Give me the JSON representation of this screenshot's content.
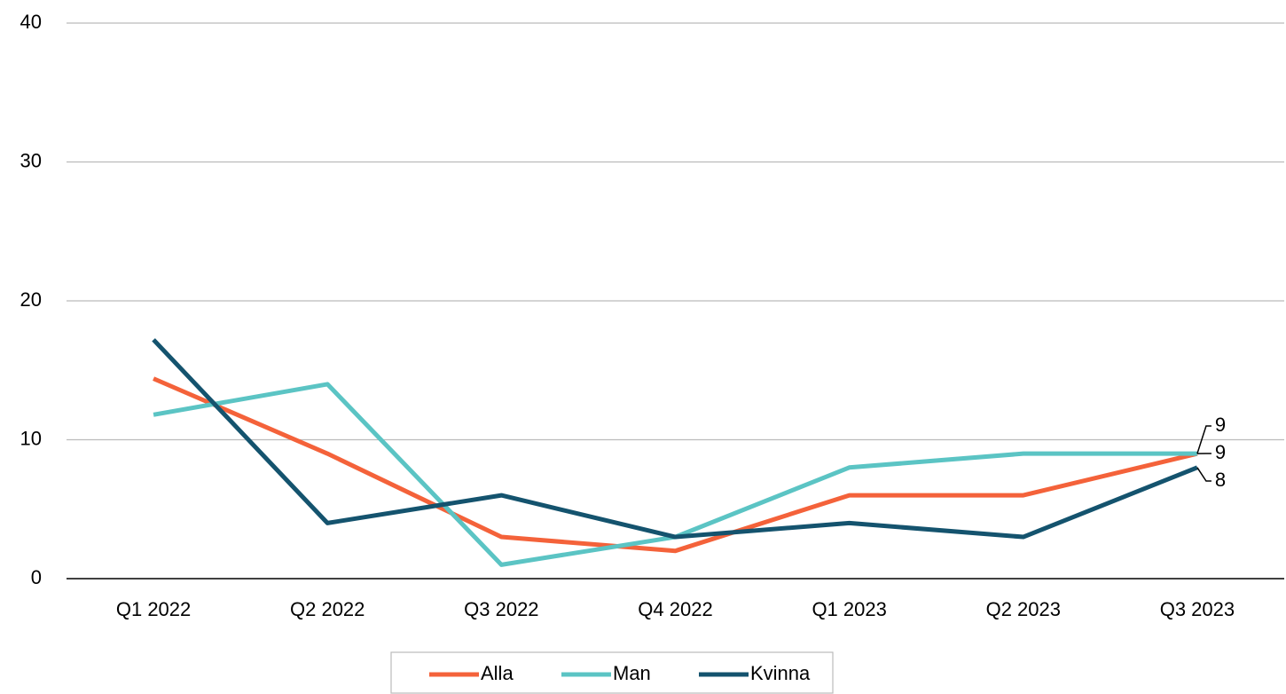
{
  "chart_data": {
    "type": "line",
    "categories": [
      "Q1 2022",
      "Q2 2022",
      "Q3 2022",
      "Q4 2022",
      "Q1 2023",
      "Q2 2023",
      "Q3 2023"
    ],
    "series": [
      {
        "name": "Alla",
        "color": "#f4623a",
        "values": [
          14.4,
          9,
          3,
          2,
          6,
          6,
          9
        ]
      },
      {
        "name": "Man",
        "color": "#5bc4c4",
        "values": [
          11.8,
          14,
          1,
          3,
          8,
          9,
          9
        ]
      },
      {
        "name": "Kvinna",
        "color": "#14536e",
        "values": [
          17.2,
          4,
          6,
          3,
          4,
          3,
          8
        ]
      }
    ],
    "ylim": [
      0,
      40
    ],
    "yticks": [
      0,
      10,
      20,
      30,
      40
    ],
    "grid": true,
    "end_labels": true,
    "legend": "bottom"
  }
}
